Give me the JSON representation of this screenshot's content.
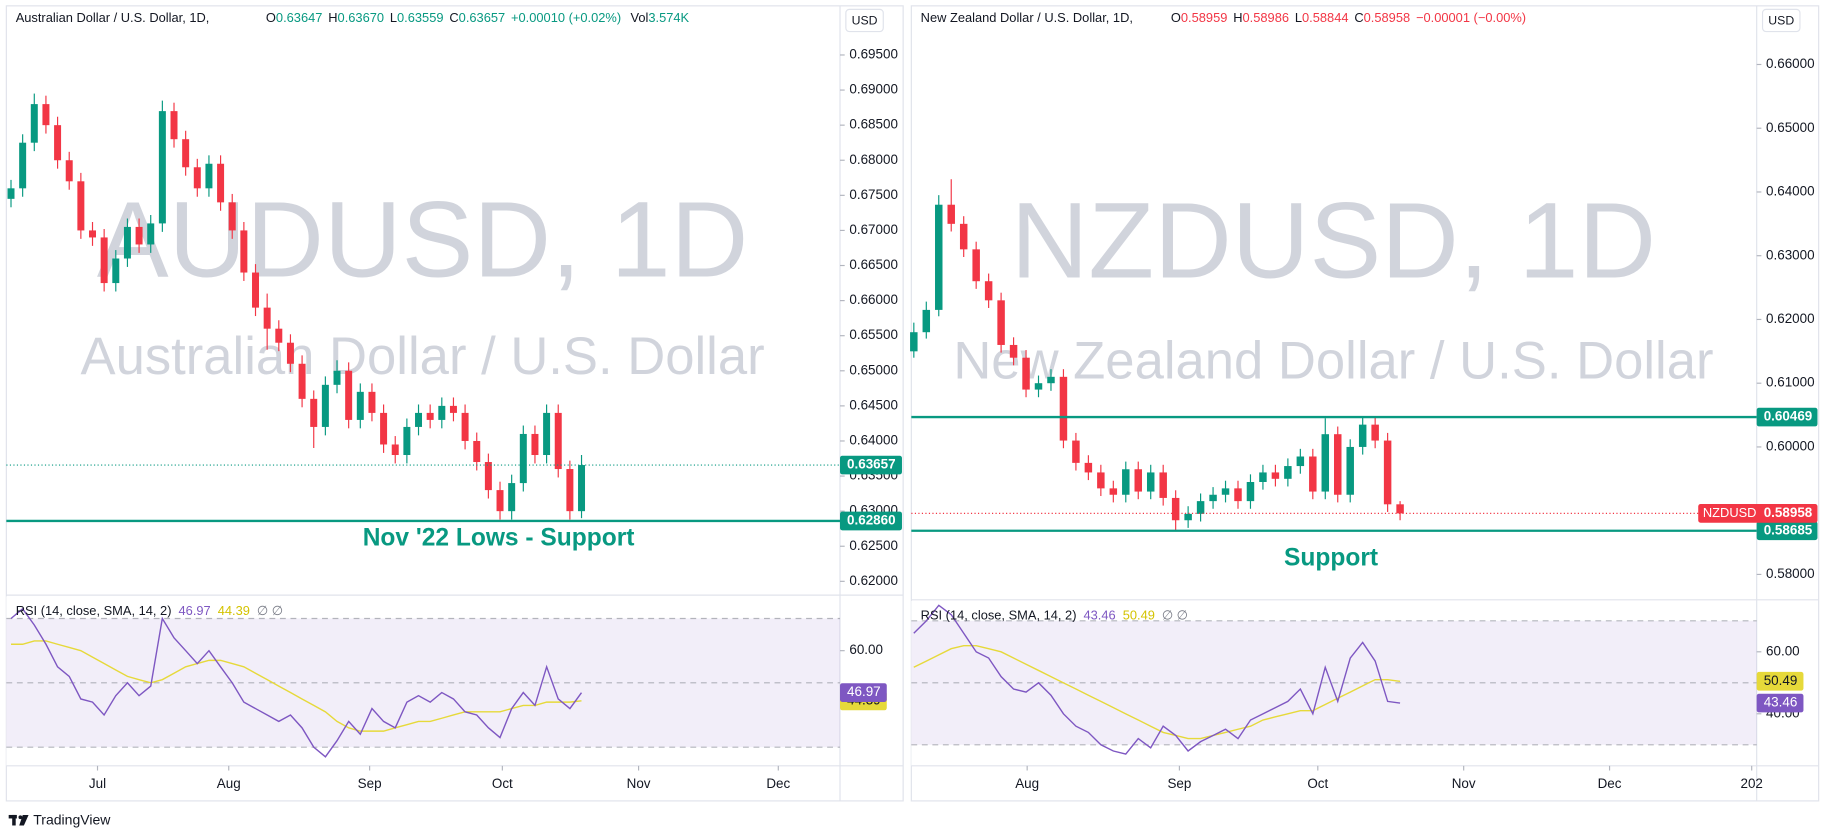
{
  "footer": "TradingView",
  "chart_data": [
    {
      "type": "candlestick",
      "title": "Australian Dollar / U.S. Dollar, 1D,",
      "header": [
        {
          "label": "O",
          "value": "0.63647"
        },
        {
          "label": "H",
          "value": "0.63670"
        },
        {
          "label": "L",
          "value": "0.63559"
        },
        {
          "label": "C",
          "value": "0.63657"
        }
      ],
      "change": "+0.00010 (+0.02%)",
      "volume": {
        "label": "Vol",
        "value": "3.574K"
      },
      "header_color": "#089981",
      "watermark": "AUDUSD, 1D",
      "watermark_subtitle": "Australian Dollar / U.S. Dollar",
      "currency": "USD",
      "up_color": "#089981",
      "down_color": "#f23645",
      "open": [
        0.6745,
        0.676,
        0.6825,
        0.688,
        0.685,
        0.68,
        0.677,
        0.67,
        0.669,
        0.6625,
        0.666,
        0.6705,
        0.668,
        0.671,
        0.687,
        0.683,
        0.679,
        0.676,
        0.6795,
        0.674,
        0.67,
        0.664,
        0.659,
        0.656,
        0.654,
        0.651,
        0.646,
        0.642,
        0.648,
        0.65,
        0.643,
        0.647,
        0.644,
        0.6395,
        0.638,
        0.642,
        0.644,
        0.643,
        0.645,
        0.644,
        0.64,
        0.637,
        0.633,
        0.63,
        0.634,
        0.641,
        0.638,
        0.644,
        0.636,
        0.63
      ],
      "high": [
        0.6772,
        0.6837,
        0.6895,
        0.6892,
        0.6862,
        0.6812,
        0.6782,
        0.6712,
        0.6702,
        0.6672,
        0.6717,
        0.6717,
        0.6722,
        0.6885,
        0.6882,
        0.6842,
        0.6802,
        0.6807,
        0.6807,
        0.6752,
        0.6712,
        0.6652,
        0.661,
        0.6572,
        0.6552,
        0.6522,
        0.6472,
        0.6492,
        0.6515,
        0.6512,
        0.6482,
        0.6482,
        0.6452,
        0.6407,
        0.6432,
        0.6452,
        0.6452,
        0.6462,
        0.6462,
        0.6452,
        0.6412,
        0.6382,
        0.6342,
        0.6352,
        0.6422,
        0.6422,
        0.6452,
        0.6452,
        0.6372,
        0.638
      ],
      "low": [
        0.6733,
        0.6748,
        0.6813,
        0.6838,
        0.6788,
        0.6758,
        0.6688,
        0.6678,
        0.6613,
        0.6613,
        0.6648,
        0.6668,
        0.6668,
        0.6698,
        0.6818,
        0.6778,
        0.6748,
        0.6748,
        0.6728,
        0.6688,
        0.6628,
        0.6578,
        0.653,
        0.6528,
        0.6498,
        0.6448,
        0.639,
        0.6408,
        0.6468,
        0.6418,
        0.6418,
        0.6428,
        0.6383,
        0.6368,
        0.6368,
        0.6408,
        0.6418,
        0.6418,
        0.6428,
        0.6388,
        0.6358,
        0.6318,
        0.6288,
        0.6288,
        0.6328,
        0.6368,
        0.6368,
        0.6348,
        0.6288,
        0.629
      ],
      "close": [
        0.676,
        0.6825,
        0.688,
        0.685,
        0.68,
        0.677,
        0.67,
        0.669,
        0.6625,
        0.666,
        0.6705,
        0.668,
        0.671,
        0.687,
        0.683,
        0.679,
        0.676,
        0.6795,
        0.674,
        0.67,
        0.664,
        0.659,
        0.656,
        0.654,
        0.651,
        0.646,
        0.642,
        0.648,
        0.65,
        0.643,
        0.647,
        0.644,
        0.6395,
        0.638,
        0.642,
        0.644,
        0.643,
        0.645,
        0.644,
        0.64,
        0.637,
        0.633,
        0.63,
        0.634,
        0.641,
        0.638,
        0.644,
        0.636,
        0.63,
        0.63657
      ],
      "xlim": [
        -0.4,
        71.2
      ],
      "xticks": [
        {
          "value": 7.43,
          "label": "Jul"
        },
        {
          "value": 18.7,
          "label": "Aug"
        },
        {
          "value": 30.8,
          "label": "Sep"
        },
        {
          "value": 42.2,
          "label": "Oct"
        },
        {
          "value": 53.9,
          "label": "Nov"
        },
        {
          "value": 65.9,
          "label": "Dec"
        }
      ],
      "ylim": [
        0.6182,
        0.702
      ],
      "yticks": [
        {
          "value": 0.62,
          "label": "0.62000"
        },
        {
          "value": 0.625,
          "label": "0.62500"
        },
        {
          "value": 0.63,
          "label": "0.63000"
        },
        {
          "value": 0.635,
          "label": "0.63500"
        },
        {
          "value": 0.64,
          "label": "0.64000"
        },
        {
          "value": 0.645,
          "label": "0.64500"
        },
        {
          "value": 0.65,
          "label": "0.65000"
        },
        {
          "value": 0.655,
          "label": "0.65500"
        },
        {
          "value": 0.66,
          "label": "0.66000"
        },
        {
          "value": 0.665,
          "label": "0.66500"
        },
        {
          "value": 0.67,
          "label": "0.67000"
        },
        {
          "value": 0.675,
          "label": "0.67500"
        },
        {
          "value": 0.68,
          "label": "0.68000"
        },
        {
          "value": 0.685,
          "label": "0.68500"
        },
        {
          "value": 0.69,
          "label": "0.69000"
        },
        {
          "value": 0.695,
          "label": "0.69500"
        }
      ],
      "price_lines": [
        {
          "value": 0.6286,
          "label": "0.62860"
        }
      ],
      "price_line_color": "#089981",
      "annotation": "Nov '22 Lows - Support",
      "rsi": {
        "title": "RSI (14, close, SMA, 14, 2)",
        "values": [
          70,
          73,
          68,
          62,
          55,
          52,
          45,
          44,
          40,
          46,
          50,
          46,
          49,
          70,
          64,
          60,
          56,
          60,
          55,
          50,
          44,
          42,
          40,
          38,
          40,
          36,
          30,
          27,
          32,
          38,
          34,
          42,
          38,
          36,
          44,
          46,
          44,
          47,
          45,
          41,
          40,
          36,
          33,
          42,
          47,
          43,
          55,
          45,
          42,
          46.97
        ],
        "sma": [
          62,
          62,
          63,
          63,
          62,
          61,
          60,
          58,
          56,
          54,
          52,
          51,
          50,
          51,
          53,
          55,
          56,
          57,
          57,
          56,
          55,
          53,
          51,
          49,
          47,
          45,
          43,
          41,
          38,
          36,
          35,
          35,
          35,
          36,
          37,
          38,
          38,
          39,
          40,
          41,
          41,
          41,
          41,
          42,
          43,
          43,
          44,
          44,
          44,
          44.39
        ],
        "na_values": "∅ ∅",
        "color": "#7e57c2",
        "sma_color": "#e6d93a",
        "ylim": [
          24.2,
          76.9
        ],
        "yticks": [
          {
            "value": 60,
            "label": "60.00"
          }
        ],
        "bands": [
          70,
          50,
          30
        ]
      }
    },
    {
      "type": "candlestick",
      "title": "New Zealand Dollar / U.S. Dollar, 1D,",
      "header": [
        {
          "label": "O",
          "value": "0.58959"
        },
        {
          "label": "H",
          "value": "0.58986"
        },
        {
          "label": "L",
          "value": "0.58844"
        },
        {
          "label": "C",
          "value": "0.58958"
        }
      ],
      "change": "−0.00001 (−0.00%)",
      "header_color": "#f23645",
      "watermark": "NZDUSD, 1D",
      "watermark_subtitle": "New Zealand Dollar / U.S. Dollar",
      "currency": "USD",
      "price_tag_symbol": "NZDUSD",
      "up_color": "#089981",
      "down_color": "#f23645",
      "open": [
        0.615,
        0.618,
        0.6215,
        0.638,
        0.635,
        0.631,
        0.626,
        0.623,
        0.616,
        0.614,
        0.609,
        0.61,
        0.611,
        0.601,
        0.5975,
        0.596,
        0.5935,
        0.5925,
        0.5965,
        0.593,
        0.596,
        0.592,
        0.5885,
        0.5895,
        0.5915,
        0.5925,
        0.5935,
        0.5915,
        0.5945,
        0.596,
        0.595,
        0.597,
        0.5985,
        0.593,
        0.602,
        0.5925,
        0.6,
        0.6035,
        0.601,
        0.591
      ],
      "high": [
        0.6195,
        0.6228,
        0.6395,
        0.642,
        0.6362,
        0.6322,
        0.6272,
        0.6242,
        0.6172,
        0.6152,
        0.6112,
        0.6122,
        0.6122,
        0.6022,
        0.5987,
        0.5972,
        0.5947,
        0.5977,
        0.5977,
        0.5972,
        0.5972,
        0.5932,
        0.5907,
        0.5927,
        0.5937,
        0.5947,
        0.5947,
        0.5957,
        0.5972,
        0.5972,
        0.5982,
        0.5997,
        0.5997,
        0.6045,
        0.6032,
        0.6012,
        0.6047,
        0.6047,
        0.6022,
        0.5915
      ],
      "low": [
        0.614,
        0.617,
        0.6205,
        0.6338,
        0.6298,
        0.6248,
        0.6218,
        0.6148,
        0.6128,
        0.6078,
        0.6078,
        0.6088,
        0.5998,
        0.5963,
        0.5948,
        0.5923,
        0.5913,
        0.5913,
        0.5918,
        0.5918,
        0.5908,
        0.5868,
        0.5873,
        0.5883,
        0.5903,
        0.5913,
        0.5903,
        0.5903,
        0.5933,
        0.5938,
        0.5938,
        0.5958,
        0.5918,
        0.5918,
        0.5913,
        0.5913,
        0.5988,
        0.5998,
        0.5898,
        0.5885
      ],
      "close": [
        0.618,
        0.6215,
        0.638,
        0.635,
        0.631,
        0.626,
        0.623,
        0.616,
        0.614,
        0.609,
        0.61,
        0.611,
        0.601,
        0.5975,
        0.596,
        0.5935,
        0.5925,
        0.5965,
        0.593,
        0.596,
        0.592,
        0.5885,
        0.5895,
        0.5915,
        0.5925,
        0.5935,
        0.5915,
        0.5945,
        0.596,
        0.595,
        0.597,
        0.5985,
        0.593,
        0.602,
        0.5925,
        0.6,
        0.6035,
        0.601,
        0.591,
        0.58958
      ],
      "xlim": [
        -0.2,
        67.6
      ],
      "xticks": [
        {
          "value": 9.09,
          "label": "Aug"
        },
        {
          "value": 21.3,
          "label": "Sep"
        },
        {
          "value": 32.4,
          "label": "Oct"
        },
        {
          "value": 44.1,
          "label": "Nov"
        },
        {
          "value": 55.8,
          "label": "Dec"
        },
        {
          "value": 67.2,
          "label": "202"
        }
      ],
      "ylim": [
        0.5762,
        0.6692
      ],
      "yticks": [
        {
          "value": 0.58,
          "label": "0.58000"
        },
        {
          "value": 0.59,
          "label": "0.59000"
        },
        {
          "value": 0.6,
          "label": "0.60000"
        },
        {
          "value": 0.61,
          "label": "0.61000"
        },
        {
          "value": 0.62,
          "label": "0.62000"
        },
        {
          "value": 0.63,
          "label": "0.63000"
        },
        {
          "value": 0.64,
          "label": "0.64000"
        },
        {
          "value": 0.65,
          "label": "0.65000"
        },
        {
          "value": 0.66,
          "label": "0.66000"
        }
      ],
      "price_lines": [
        {
          "value": 0.60469,
          "label": "0.60469"
        },
        {
          "value": 0.58685,
          "label": "0.58685"
        }
      ],
      "price_line_color": "#089981",
      "annotation": "Support",
      "rsi": {
        "title": "RSI (14, close, SMA, 14, 2)",
        "values": [
          66,
          70,
          75,
          72,
          66,
          60,
          58,
          52,
          48,
          47,
          50,
          46,
          40,
          36,
          34,
          30,
          28,
          27,
          32,
          29,
          36,
          33,
          28,
          31,
          33,
          35,
          32,
          38,
          40,
          42,
          44,
          48,
          40,
          55,
          44,
          58,
          63,
          57,
          44,
          43.46
        ],
        "sma": [
          55,
          57,
          59,
          61,
          62,
          62,
          61,
          60,
          58,
          56,
          54,
          52,
          50,
          48,
          46,
          44,
          42,
          40,
          38,
          36,
          34,
          33,
          32,
          32,
          33,
          34,
          35,
          36,
          38,
          39,
          40,
          41,
          41,
          43,
          45,
          47,
          49,
          51,
          51,
          50.49
        ],
        "na_values": "∅ ∅",
        "color": "#7e57c2",
        "sma_color": "#e6d93a",
        "ylim": [
          23.2,
          76.4
        ],
        "yticks": [
          {
            "value": 60,
            "label": "60.00"
          },
          {
            "value": 40,
            "label": "40.00"
          }
        ],
        "bands": [
          70,
          50,
          30
        ]
      }
    }
  ]
}
